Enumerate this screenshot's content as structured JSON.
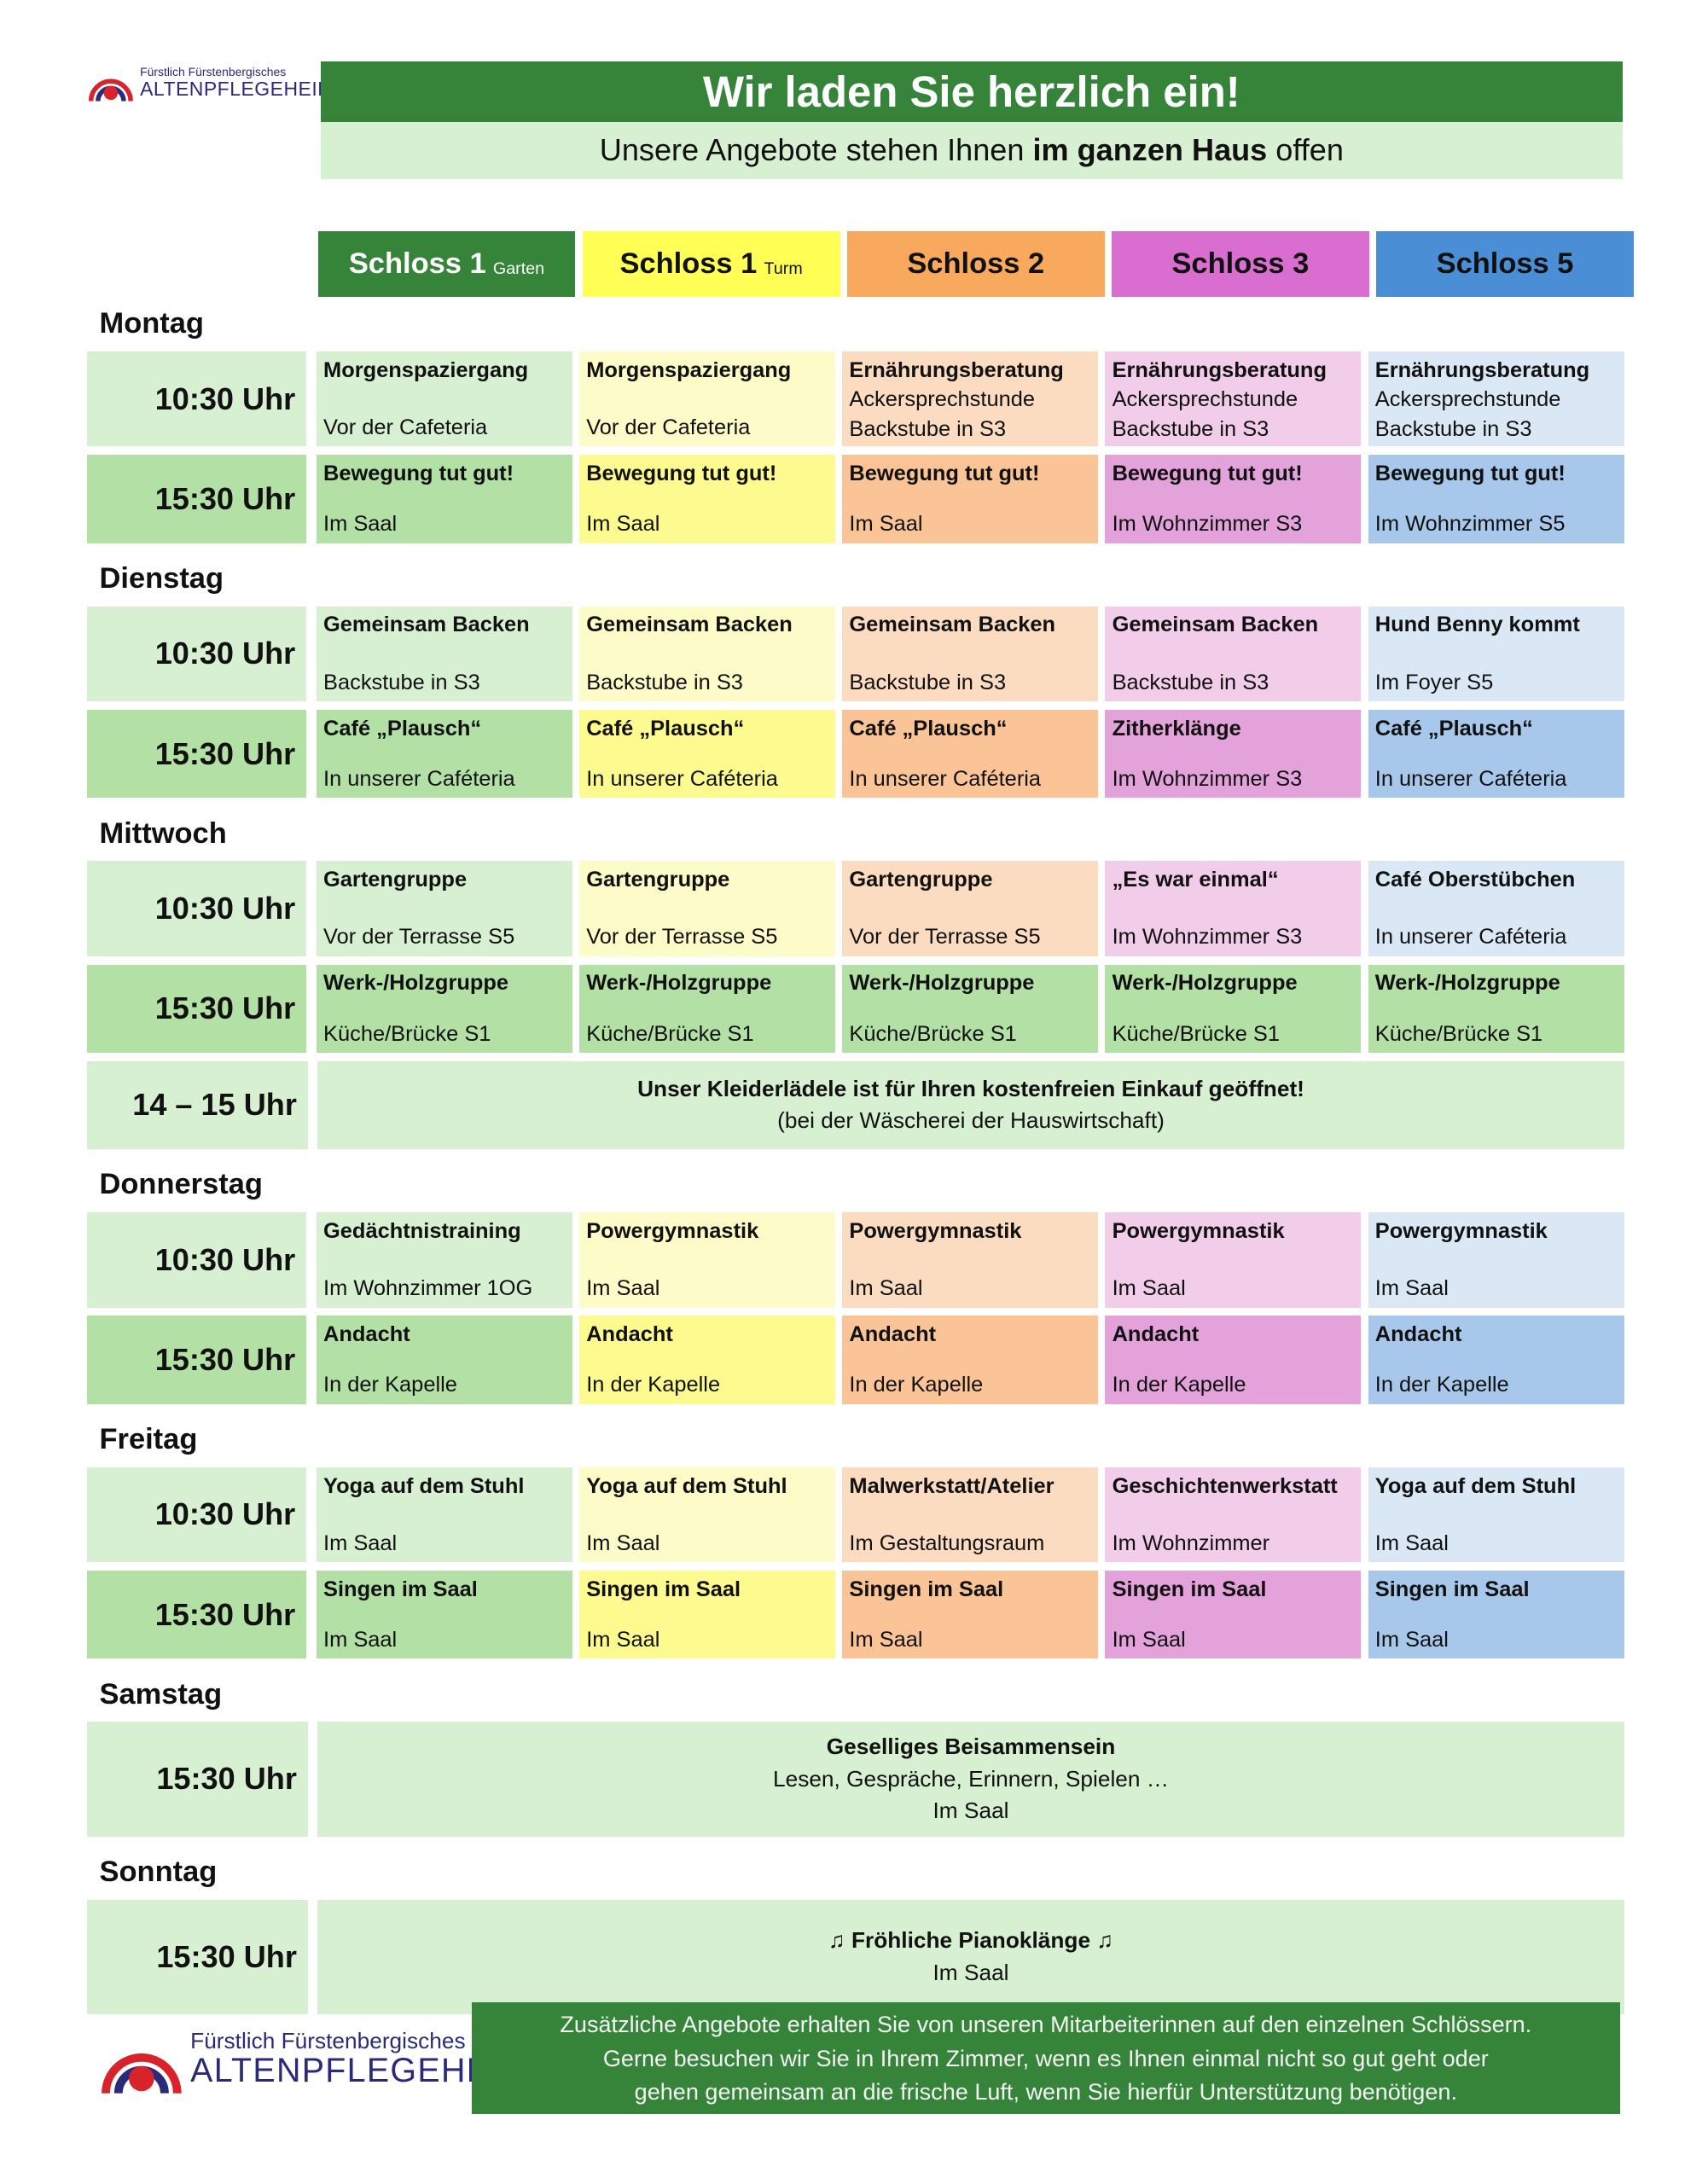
{
  "logo": {
    "line1": "Fürstlich Fürstenbergisches",
    "line2": "ALTENPFLEGEHEIM"
  },
  "header": {
    "title": "Wir laden Sie herzlich ein!",
    "subtitle_pre": "Unsere Angebote stehen Ihnen ",
    "subtitle_bold": "im ganzen Haus",
    "subtitle_post": " offen"
  },
  "colors": {
    "dark_green": "#35843a",
    "light_green": "#d8f0d2"
  },
  "columns": [
    {
      "label": "Schloss 1",
      "suffix": "Garten",
      "head": "#35843a",
      "fg": "#ffffff",
      "light": "#d8f0d2",
      "medium": "#b3e0a5"
    },
    {
      "label": "Schloss 1",
      "suffix": "Turm",
      "head": "#ffff55",
      "fg": "#111111",
      "light": "#fdfbc8",
      "medium": "#fdfb8f"
    },
    {
      "label": "Schloss 2",
      "suffix": "",
      "head": "#f9a95e",
      "fg": "#111111",
      "light": "#fcdcc0",
      "medium": "#fbc497"
    },
    {
      "label": "Schloss 3",
      "suffix": "",
      "head": "#d96ed0",
      "fg": "#111111",
      "light": "#f1cdea",
      "medium": "#e3a2da"
    },
    {
      "label": "Schloss 5",
      "suffix": "",
      "head": "#4a8fd6",
      "fg": "#111111",
      "light": "#dae8f6",
      "medium": "#a8c8eb"
    }
  ],
  "days": [
    {
      "name": "Montag",
      "rows": [
        {
          "time": "10:30 Uhr",
          "tone": "light",
          "cells": [
            {
              "title": "Morgenspaziergang",
              "sub": [
                "Vor der Cafeteria"
              ]
            },
            {
              "title": "Morgenspaziergang",
              "sub": [
                "Vor der Cafeteria"
              ]
            },
            {
              "title": "Ernährungsberatung",
              "sub": [
                "Ackersprechstunde",
                "Backstube in S3"
              ]
            },
            {
              "title": "Ernährungsberatung",
              "sub": [
                "Ackersprechstunde",
                "Backstube in S3"
              ]
            },
            {
              "title": "Ernährungsberatung",
              "sub": [
                "Ackersprechstunde",
                "Backstube in S3"
              ]
            }
          ]
        },
        {
          "time": "15:30 Uhr",
          "tone": "medium",
          "cells": [
            {
              "title": "Bewegung tut gut!",
              "sub": [
                "Im Saal"
              ]
            },
            {
              "title": "Bewegung tut gut!",
              "sub": [
                "Im Saal"
              ]
            },
            {
              "title": "Bewegung tut gut!",
              "sub": [
                "Im Saal"
              ]
            },
            {
              "title": "Bewegung tut gut!",
              "sub": [
                "Im Wohnzimmer S3"
              ]
            },
            {
              "title": "Bewegung tut gut!",
              "sub": [
                "Im Wohnzimmer S5"
              ]
            }
          ]
        }
      ]
    },
    {
      "name": "Dienstag",
      "rows": [
        {
          "time": "10:30 Uhr",
          "tone": "light",
          "cells": [
            {
              "title": "Gemeinsam Backen",
              "sub": [
                "Backstube in S3"
              ]
            },
            {
              "title": "Gemeinsam Backen",
              "sub": [
                "Backstube in S3"
              ]
            },
            {
              "title": "Gemeinsam Backen",
              "sub": [
                "Backstube in S3"
              ]
            },
            {
              "title": "Gemeinsam Backen",
              "sub": [
                "Backstube in S3"
              ]
            },
            {
              "title": "Hund Benny kommt",
              "sub": [
                "Im Foyer S5"
              ]
            }
          ]
        },
        {
          "time": "15:30 Uhr",
          "tone": "medium",
          "cells": [
            {
              "title": "Café „Plausch“",
              "sub": [
                "In unserer Caféteria"
              ]
            },
            {
              "title": "Café „Plausch“",
              "sub": [
                "In unserer Caféteria"
              ]
            },
            {
              "title": "Café „Plausch“",
              "sub": [
                "In unserer Caféteria"
              ]
            },
            {
              "title": "Zitherklänge",
              "sub": [
                "Im Wohnzimmer S3"
              ]
            },
            {
              "title": "Café „Plausch“",
              "sub": [
                "In unserer Caféteria"
              ]
            }
          ]
        }
      ]
    },
    {
      "name": "Mittwoch",
      "rows": [
        {
          "time": "10:30 Uhr",
          "tone": "light",
          "cells": [
            {
              "title": "Gartengruppe",
              "sub": [
                "Vor der Terrasse S5"
              ]
            },
            {
              "title": "Gartengruppe",
              "sub": [
                "Vor der Terrasse S5"
              ]
            },
            {
              "title": "Gartengruppe",
              "sub": [
                "Vor der Terrasse S5"
              ]
            },
            {
              "title": "„Es war einmal“",
              "sub": [
                "Im Wohnzimmer S3"
              ]
            },
            {
              "title": "Café Oberstübchen",
              "sub": [
                "In unserer Caféteria"
              ]
            }
          ]
        },
        {
          "time": "15:30 Uhr",
          "tone": "green",
          "cells": [
            {
              "title": "Werk-/Holzgruppe",
              "sub": [
                "Küche/Brücke S1"
              ]
            },
            {
              "title": "Werk-/Holzgruppe",
              "sub": [
                "Küche/Brücke S1"
              ]
            },
            {
              "title": "Werk-/Holzgruppe",
              "sub": [
                "Küche/Brücke S1"
              ]
            },
            {
              "title": "Werk-/Holzgruppe",
              "sub": [
                "Küche/Brücke S1"
              ]
            },
            {
              "title": "Werk-/Holzgruppe",
              "sub": [
                "Küche/Brücke S1"
              ]
            }
          ]
        },
        {
          "time": "14 – 15 Uhr",
          "tone": "span",
          "bold": "Unser Kleiderlädele ist für Ihren kostenfreien Einkauf geöffnet!",
          "lines": [
            "(bei der Wäscherei der Hauswirtschaft)"
          ]
        }
      ]
    },
    {
      "name": "Donnerstag",
      "rows": [
        {
          "time": "10:30 Uhr",
          "tone": "light",
          "cells": [
            {
              "title": "Gedächtnistraining",
              "sub": [
                "Im Wohnzimmer 1OG"
              ]
            },
            {
              "title": "Powergymnastik",
              "sub": [
                "Im Saal"
              ]
            },
            {
              "title": "Powergymnastik",
              "sub": [
                "Im Saal"
              ]
            },
            {
              "title": "Powergymnastik",
              "sub": [
                "Im Saal"
              ]
            },
            {
              "title": "Powergymnastik",
              "sub": [
                "Im Saal"
              ]
            }
          ]
        },
        {
          "time": "15:30 Uhr",
          "tone": "medium",
          "cells": [
            {
              "title": "Andacht",
              "sub": [
                "In der Kapelle"
              ]
            },
            {
              "title": "Andacht",
              "sub": [
                "In der Kapelle"
              ]
            },
            {
              "title": "Andacht",
              "sub": [
                "In der Kapelle"
              ]
            },
            {
              "title": "Andacht",
              "sub": [
                "In der Kapelle"
              ]
            },
            {
              "title": "Andacht",
              "sub": [
                "In der Kapelle"
              ]
            }
          ]
        }
      ]
    },
    {
      "name": "Freitag",
      "rows": [
        {
          "time": "10:30 Uhr",
          "tone": "light",
          "cells": [
            {
              "title": "Yoga auf dem Stuhl",
              "sub": [
                "Im Saal"
              ]
            },
            {
              "title": "Yoga auf dem Stuhl",
              "sub": [
                "Im Saal"
              ]
            },
            {
              "title": "Malwerkstatt/Atelier",
              "sub": [
                "Im Gestaltungsraum"
              ]
            },
            {
              "title": "Geschichtenwerkstatt",
              "sub": [
                "Im Wohnzimmer"
              ]
            },
            {
              "title": "Yoga auf dem Stuhl",
              "sub": [
                "Im Saal"
              ]
            }
          ]
        },
        {
          "time": "15:30 Uhr",
          "tone": "medium",
          "cells": [
            {
              "title": "Singen im Saal",
              "sub": [
                "Im Saal"
              ]
            },
            {
              "title": "Singen im Saal",
              "sub": [
                "Im Saal"
              ]
            },
            {
              "title": "Singen im Saal",
              "sub": [
                "Im Saal"
              ]
            },
            {
              "title": "Singen im Saal",
              "sub": [
                "Im Saal"
              ]
            },
            {
              "title": "Singen im Saal",
              "sub": [
                "Im Saal"
              ]
            }
          ]
        }
      ]
    },
    {
      "name": "Samstag",
      "rows": [
        {
          "time": "15:30 Uhr",
          "tone": "span",
          "bold": "Geselliges Beisammensein",
          "lines": [
            "Lesen, Gespräche, Erinnern, Spielen …",
            "Im Saal"
          ]
        }
      ]
    },
    {
      "name": "Sonntag",
      "rows": [
        {
          "time": "15:30 Uhr",
          "tone": "span",
          "bold": "♫ Fröhliche Pianoklänge ♫",
          "lines": [
            "Im Saal"
          ]
        }
      ]
    }
  ],
  "footer": {
    "lines": [
      "Zusätzliche Angebote erhalten Sie von unseren Mitarbeiterinnen auf den einzelnen Schlössern.",
      "Gerne besuchen wir Sie in Ihrem Zimmer, wenn es Ihnen einmal nicht so gut geht oder",
      "gehen gemeinsam an die frische Luft, wenn Sie hierfür Unterstützung benötigen."
    ]
  }
}
